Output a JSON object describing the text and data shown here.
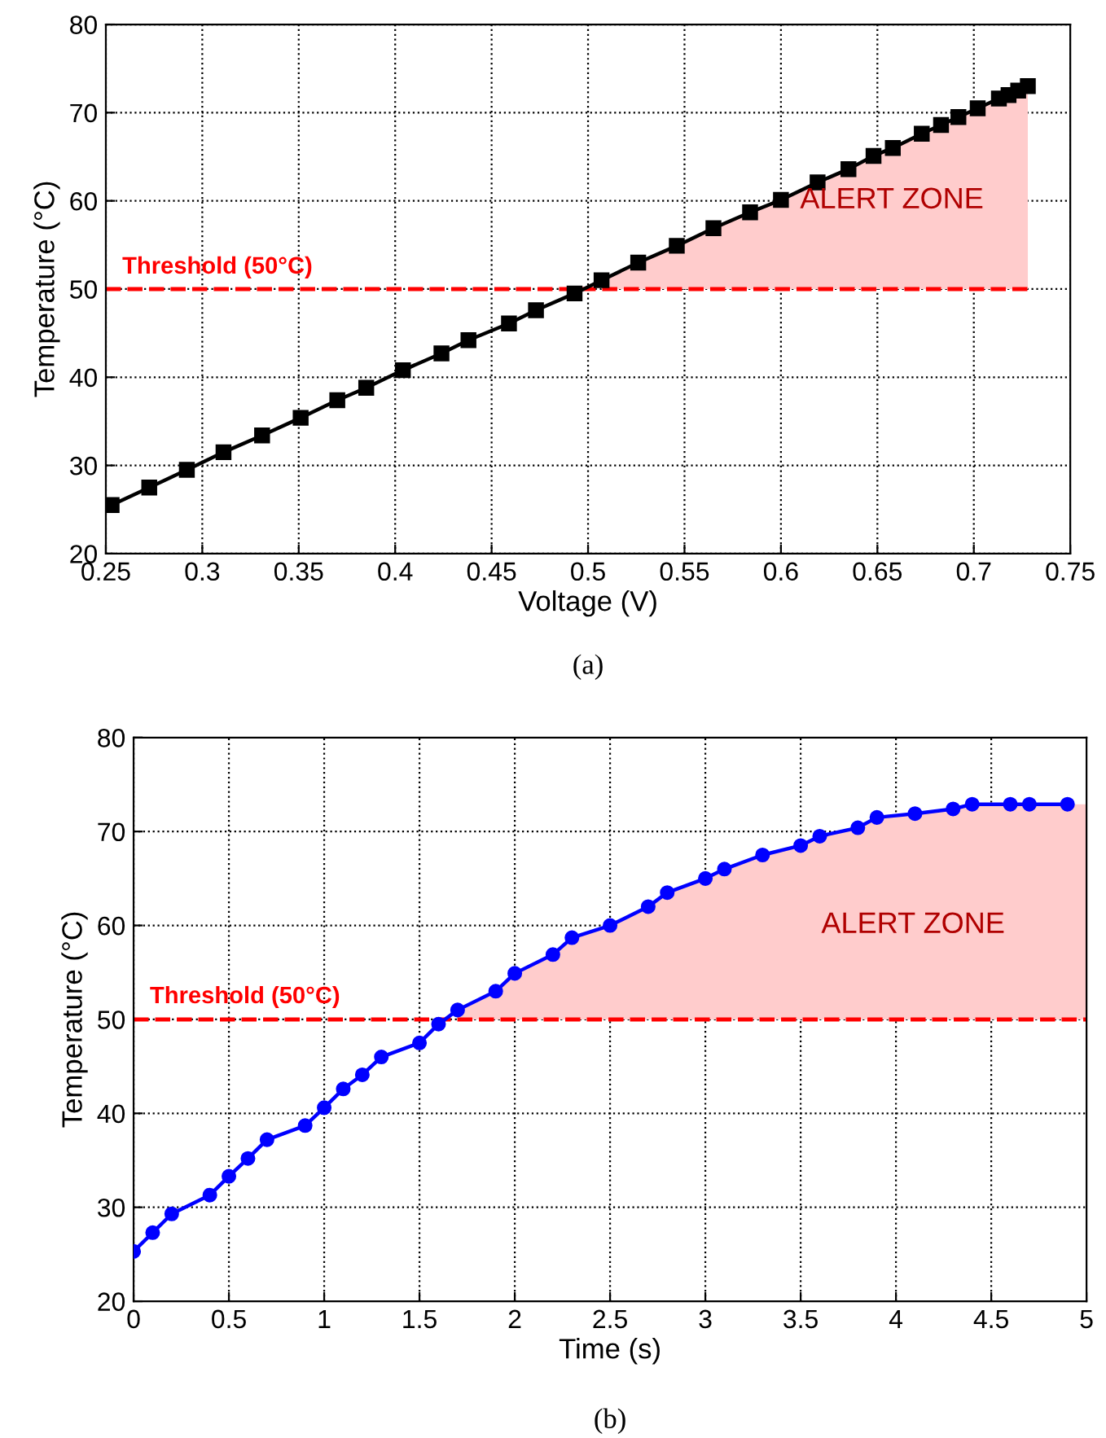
{
  "chart_data": [
    {
      "type": "line",
      "title": "(a)",
      "xlabel": "Voltage (V)",
      "ylabel": "Temperature (°C)",
      "xlim": [
        0.25,
        0.75
      ],
      "xticks": [
        0.25,
        0.3,
        0.35,
        0.4,
        0.45,
        0.5,
        0.55,
        0.6,
        0.65,
        0.7,
        0.75
      ],
      "ylim": [
        20,
        80
      ],
      "yticks": [
        20,
        30,
        40,
        50,
        60,
        70,
        80
      ],
      "grid": true,
      "marker": "square",
      "line_style": "solid",
      "series": [
        {
          "color": "#000000",
          "x": [
            0.253,
            0.2725,
            0.292,
            0.311,
            0.331,
            0.351,
            0.37,
            0.385,
            0.404,
            0.424,
            0.438,
            0.459,
            0.473,
            0.493,
            0.507,
            0.526,
            0.546,
            0.565,
            0.584,
            0.6,
            0.619,
            0.635,
            0.648,
            0.658,
            0.673,
            0.683,
            0.692,
            0.702,
            0.713,
            0.718,
            0.723,
            0.728
          ],
          "values": [
            25.5,
            27.5,
            29.5,
            31.5,
            33.4,
            35.4,
            37.4,
            38.8,
            40.8,
            42.7,
            44.2,
            46.1,
            47.6,
            49.5,
            51.0,
            53.0,
            54.9,
            56.9,
            58.7,
            60.1,
            62.1,
            63.6,
            65.1,
            66.0,
            67.6,
            68.6,
            69.5,
            70.5,
            71.6,
            72.0,
            72.5,
            73.0
          ],
          "lower": [
            null,
            null,
            null,
            null,
            null,
            null,
            null,
            null,
            null,
            null,
            null,
            null,
            null,
            null,
            50,
            50,
            50,
            50,
            50,
            50,
            50,
            50,
            50,
            50,
            50,
            50,
            50,
            50,
            50,
            50,
            50,
            50
          ],
          "upper": [
            null,
            null,
            null,
            null,
            null,
            null,
            null,
            null,
            null,
            null,
            null,
            null,
            null,
            null,
            51.0,
            53.0,
            54.9,
            56.9,
            58.7,
            60.1,
            62.1,
            63.6,
            65.1,
            66.0,
            67.6,
            68.6,
            69.5,
            70.5,
            71.6,
            72.0,
            72.5,
            73.0
          ]
        }
      ],
      "ref_lines": [
        {
          "axis": "y",
          "value": 50,
          "label": "Threshold (50°C)",
          "color": "#ff0000",
          "line_style": "dashed"
        }
      ],
      "annotations": [
        "ALERT ZONE"
      ]
    },
    {
      "type": "line",
      "title": "(b)",
      "xlabel": "Time (s)",
      "ylabel": "Temperature (°C)",
      "xlim": [
        0,
        5
      ],
      "xticks": [
        0,
        0.5,
        1,
        1.5,
        2,
        2.5,
        3,
        3.5,
        4,
        4.5,
        5
      ],
      "ylim": [
        20,
        80
      ],
      "yticks": [
        20,
        30,
        40,
        50,
        60,
        70,
        80
      ],
      "grid": true,
      "marker": "circle",
      "line_style": "solid",
      "series": [
        {
          "color": "#0000ff",
          "x": [
            0,
            0.1,
            0.2,
            0.4,
            0.5,
            0.6,
            0.7,
            0.9,
            1.0,
            1.1,
            1.2,
            1.3,
            1.5,
            1.6,
            1.7,
            1.9,
            2.0,
            2.2,
            2.3,
            2.5,
            2.7,
            2.8,
            3.0,
            3.1,
            3.3,
            3.5,
            3.6,
            3.8,
            3.9,
            4.1,
            4.3,
            4.4,
            4.6,
            4.7,
            4.9,
            5.0
          ],
          "values": [
            25.3,
            27.3,
            29.3,
            31.3,
            33.3,
            35.2,
            37.2,
            38.7,
            40.6,
            42.6,
            44.1,
            46.0,
            47.5,
            49.5,
            51.0,
            53.0,
            54.9,
            56.9,
            58.7,
            60.0,
            62.0,
            63.5,
            65.0,
            66.0,
            67.5,
            68.5,
            69.5,
            70.4,
            71.5,
            71.9,
            72.4,
            72.9,
            72.9,
            72.9,
            72.9,
            null
          ],
          "lower": [
            null,
            null,
            null,
            null,
            null,
            null,
            null,
            null,
            null,
            null,
            null,
            null,
            null,
            null,
            50,
            50,
            50,
            50,
            50,
            50,
            50,
            50,
            50,
            50,
            50,
            50,
            50,
            50,
            50,
            50,
            50,
            50,
            50,
            50,
            50,
            50
          ],
          "upper": [
            null,
            null,
            null,
            null,
            null,
            null,
            null,
            null,
            null,
            null,
            null,
            null,
            null,
            null,
            51.0,
            53.0,
            54.9,
            56.9,
            58.7,
            60.0,
            62.0,
            63.5,
            65.0,
            66.0,
            67.5,
            68.5,
            69.5,
            70.4,
            71.5,
            71.9,
            72.4,
            72.9,
            72.9,
            72.9,
            72.9,
            72.9
          ]
        }
      ],
      "ref_lines": [
        {
          "axis": "y",
          "value": 50,
          "label": "Threshold (50°C)",
          "color": "#ff0000",
          "line_style": "dashed"
        }
      ],
      "annotations": [
        "ALERT ZONE"
      ]
    }
  ]
}
